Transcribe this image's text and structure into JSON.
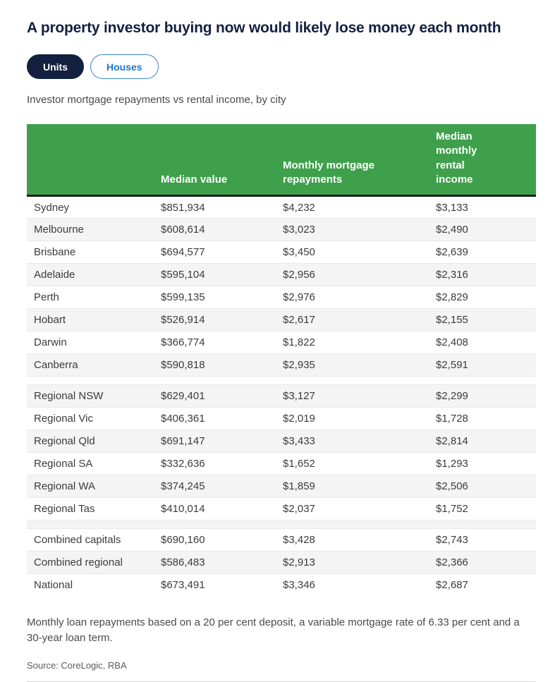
{
  "title": "A property investor buying now would likely lose money each month",
  "toggle": {
    "selected": "Units",
    "options": [
      {
        "label": "Units",
        "active": true
      },
      {
        "label": "Houses",
        "active": false
      }
    ]
  },
  "subtitle": "Investor mortgage repayments vs rental income, by city",
  "chart_data": {
    "type": "table",
    "title": "A property investor buying now would likely lose money each month",
    "subtitle": "Investor mortgage repayments vs rental income, by city",
    "columns": [
      "",
      "Median value",
      "Monthly mortgage repayments",
      "Median monthly rental income"
    ],
    "groups": [
      [
        [
          "Sydney",
          "$851,934",
          "$4,232",
          "$3,133"
        ],
        [
          "Melbourne",
          "$608,614",
          "$3,023",
          "$2,490"
        ],
        [
          "Brisbane",
          "$694,577",
          "$3,450",
          "$2,639"
        ],
        [
          "Adelaide",
          "$595,104",
          "$2,956",
          "$2,316"
        ],
        [
          "Perth",
          "$599,135",
          "$2,976",
          "$2,829"
        ],
        [
          "Hobart",
          "$526,914",
          "$2,617",
          "$2,155"
        ],
        [
          "Darwin",
          "$366,774",
          "$1,822",
          "$2,408"
        ],
        [
          "Canberra",
          "$590,818",
          "$2,935",
          "$2,591"
        ]
      ],
      [
        [
          "Regional NSW",
          "$629,401",
          "$3,127",
          "$2,299"
        ],
        [
          "Regional Vic",
          "$406,361",
          "$2,019",
          "$1,728"
        ],
        [
          "Regional Qld",
          "$691,147",
          "$3,433",
          "$2,814"
        ],
        [
          "Regional SA",
          "$332,636",
          "$1,652",
          "$1,293"
        ],
        [
          "Regional WA",
          "$374,245",
          "$1,859",
          "$2,506"
        ],
        [
          "Regional Tas",
          "$410,014",
          "$2,037",
          "$1,752"
        ]
      ],
      [
        [
          "Combined capitals",
          "$690,160",
          "$3,428",
          "$2,743"
        ],
        [
          "Combined regional",
          "$586,483",
          "$2,913",
          "$2,366"
        ],
        [
          "National",
          "$673,491",
          "$3,346",
          "$2,687"
        ]
      ]
    ]
  },
  "footnote": "Monthly loan repayments based on a 20 per cent deposit, a variable mortgage rate of 6.33 per cent and a 30-year loan term.",
  "source": "Source: CoreLogic, RBA",
  "colors": {
    "header_green": "#3fa04c",
    "navy": "#13203f",
    "link_blue": "#2176c7",
    "alt_row": "#f4f4f4"
  }
}
